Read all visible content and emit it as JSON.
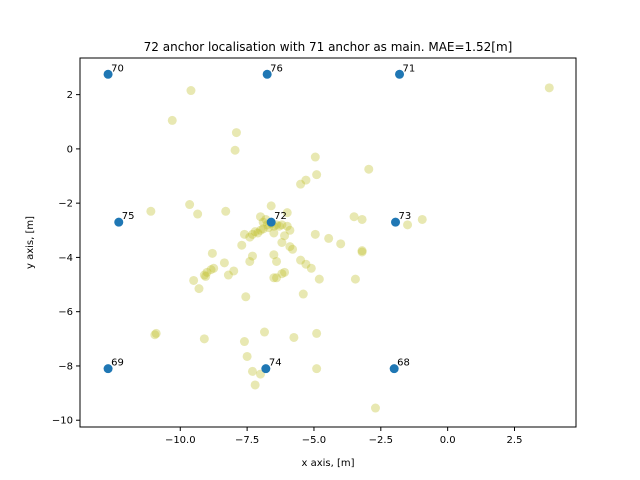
{
  "chart_data": {
    "type": "scatter",
    "title": "72 anchor localisation with 71 anchor as main. MAE=1.52[m]",
    "xlabel": "x axis, [m]",
    "ylabel": "y axis, [m]",
    "xlim": [
      -13.75,
      4.8
    ],
    "ylim": [
      -10.25,
      3.35
    ],
    "xticks": [
      -10.0,
      -7.5,
      -5.0,
      -2.5,
      0.0,
      2.5
    ],
    "xtick_labels": [
      "−10.0",
      "−7.5",
      "−5.0",
      "−2.5",
      "0.0",
      "2.5"
    ],
    "yticks": [
      -10,
      -8,
      -6,
      -4,
      -2,
      0,
      2
    ],
    "ytick_labels": [
      "−10",
      "−8",
      "−6",
      "−4",
      "−2",
      "0",
      "2"
    ],
    "grid": false,
    "series": [
      {
        "role": "anchors",
        "color": "#1f77b4",
        "points": [
          {
            "label": "70",
            "x": -12.7,
            "y": 2.75
          },
          {
            "label": "76",
            "x": -6.75,
            "y": 2.75
          },
          {
            "label": "71",
            "x": -1.8,
            "y": 2.75
          },
          {
            "label": "75",
            "x": -12.3,
            "y": -2.7
          },
          {
            "label": "72",
            "x": -6.6,
            "y": -2.7
          },
          {
            "label": "73",
            "x": -1.95,
            "y": -2.7
          },
          {
            "label": "69",
            "x": -12.7,
            "y": -8.1
          },
          {
            "label": "74",
            "x": -6.8,
            "y": -8.1
          },
          {
            "label": "68",
            "x": -2.0,
            "y": -8.1
          }
        ]
      },
      {
        "role": "estimates",
        "color": "#bcbd22",
        "points": [
          [
            -9.6,
            2.15
          ],
          [
            3.8,
            2.25
          ],
          [
            -10.3,
            1.05
          ],
          [
            -7.9,
            0.6
          ],
          [
            -7.95,
            -0.05
          ],
          [
            -4.95,
            -0.3
          ],
          [
            -2.95,
            -0.75
          ],
          [
            -4.9,
            -0.95
          ],
          [
            -5.3,
            -1.15
          ],
          [
            -5.5,
            -1.3
          ],
          [
            -11.1,
            -2.3
          ],
          [
            -9.65,
            -2.05
          ],
          [
            -9.35,
            -2.4
          ],
          [
            -8.3,
            -2.3
          ],
          [
            -7.0,
            -2.5
          ],
          [
            -6.6,
            -2.1
          ],
          [
            -6.0,
            -2.35
          ],
          [
            -3.5,
            -2.5
          ],
          [
            -3.2,
            -2.6
          ],
          [
            -1.5,
            -2.8
          ],
          [
            -0.95,
            -2.6
          ],
          [
            -6.9,
            -2.7
          ],
          [
            -6.8,
            -2.6
          ],
          [
            -6.75,
            -2.8
          ],
          [
            -6.7,
            -2.9
          ],
          [
            -6.6,
            -2.75
          ],
          [
            -6.5,
            -2.85
          ],
          [
            -6.4,
            -2.8
          ],
          [
            -6.3,
            -2.85
          ],
          [
            -6.9,
            -2.95
          ],
          [
            -7.0,
            -3.0
          ],
          [
            -7.1,
            -3.1
          ],
          [
            -7.2,
            -3.05
          ],
          [
            -7.3,
            -3.15
          ],
          [
            -7.4,
            -3.25
          ],
          [
            -7.6,
            -3.15
          ],
          [
            -6.5,
            -3.1
          ],
          [
            -6.2,
            -2.8
          ],
          [
            -6.0,
            -2.85
          ],
          [
            -5.9,
            -3.0
          ],
          [
            -6.1,
            -3.2
          ],
          [
            -6.2,
            -3.45
          ],
          [
            -5.9,
            -3.6
          ],
          [
            -5.8,
            -3.7
          ],
          [
            -4.95,
            -3.15
          ],
          [
            -4.45,
            -3.3
          ],
          [
            -4.0,
            -3.5
          ],
          [
            -3.2,
            -3.75
          ],
          [
            -7.7,
            -3.55
          ],
          [
            -7.3,
            -3.95
          ],
          [
            -7.4,
            -4.15
          ],
          [
            -6.5,
            -3.9
          ],
          [
            -6.4,
            -4.15
          ],
          [
            -5.5,
            -4.1
          ],
          [
            -5.3,
            -4.25
          ],
          [
            -5.1,
            -4.4
          ],
          [
            -4.8,
            -4.8
          ],
          [
            -3.45,
            -4.8
          ],
          [
            -6.1,
            -4.55
          ],
          [
            -6.2,
            -4.6
          ],
          [
            -6.4,
            -4.75
          ],
          [
            -6.5,
            -4.75
          ],
          [
            -8.8,
            -3.85
          ],
          [
            -8.35,
            -4.2
          ],
          [
            -8.0,
            -4.5
          ],
          [
            -8.2,
            -4.65
          ],
          [
            -8.75,
            -4.4
          ],
          [
            -8.85,
            -4.45
          ],
          [
            -9.0,
            -4.55
          ],
          [
            -9.1,
            -4.65
          ],
          [
            -9.05,
            -4.7
          ],
          [
            -9.5,
            -4.85
          ],
          [
            -9.3,
            -5.15
          ],
          [
            -7.55,
            -5.45
          ],
          [
            -5.4,
            -5.35
          ],
          [
            -10.9,
            -6.8
          ],
          [
            -10.95,
            -6.85
          ],
          [
            -9.1,
            -7.0
          ],
          [
            -6.85,
            -6.75
          ],
          [
            -5.75,
            -6.95
          ],
          [
            -4.9,
            -6.8
          ],
          [
            -7.6,
            -7.1
          ],
          [
            -7.5,
            -7.65
          ],
          [
            -7.3,
            -8.2
          ],
          [
            -7.0,
            -8.3
          ],
          [
            -7.2,
            -8.7
          ],
          [
            -4.9,
            -8.1
          ],
          [
            -2.7,
            -9.55
          ],
          [
            -3.2,
            -3.8
          ]
        ]
      }
    ]
  }
}
